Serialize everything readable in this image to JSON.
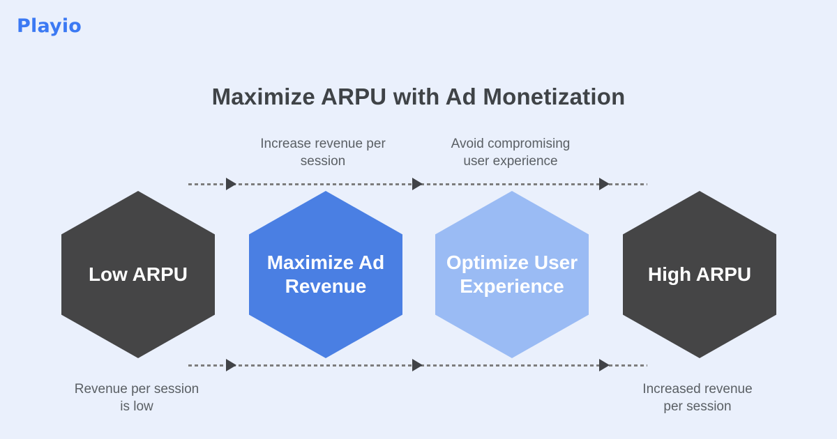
{
  "brand": {
    "name": "Playio",
    "color": "#3B79F3"
  },
  "title": "Maximize ARPU with Ad Monetization",
  "hexagons": [
    {
      "id": "low-arpu",
      "line1": "Low ARPU",
      "line2": "",
      "fill": "#454546",
      "text_color": "#FFFFFF"
    },
    {
      "id": "maximize-ad-revenue",
      "line1": "Maximize Ad",
      "line2": "Revenue",
      "fill": "#4A7FE3",
      "text_color": "#FFFFFF"
    },
    {
      "id": "optimize-user-experience",
      "line1": "Optimize User",
      "line2": "Experience",
      "fill": "#9ABBF4",
      "text_color": "#FFFFFF"
    },
    {
      "id": "high-arpu",
      "line1": "High ARPU",
      "line2": "",
      "fill": "#454546",
      "text_color": "#FFFFFF"
    }
  ],
  "annotations": {
    "top_left": {
      "line1": "Increase revenue per",
      "line2": "session"
    },
    "top_right": {
      "line1": "Avoid compromising",
      "line2": "user experience"
    },
    "bottom_left": {
      "line1": "Revenue per session",
      "line2": "is low"
    },
    "bottom_right": {
      "line1": "Increased revenue",
      "line2": "per session"
    }
  },
  "colors": {
    "background": "#EAF0FC",
    "title_text": "#3F4347",
    "annotation_text": "#5A5F64",
    "dotted_line": "#7D7D7D",
    "arrowhead": "#414347"
  }
}
